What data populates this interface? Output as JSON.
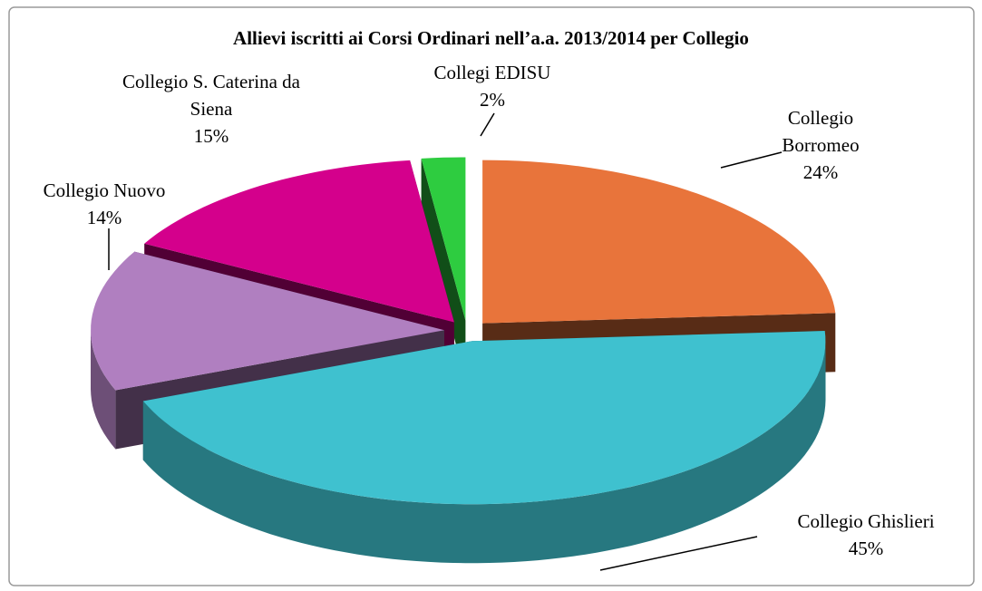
{
  "chart_data": {
    "type": "pie3d",
    "title": "Allievi iscritti ai Corsi Ordinari nell’a.a. 2013/2014 per Collegio",
    "categories": [
      "Collegio Borromeo",
      "Collegio Ghislieri",
      "Collegio Nuovo",
      "Collegio S. Caterina da Siena",
      "Collegi EDISU"
    ],
    "values": [
      24,
      45,
      14,
      15,
      2
    ],
    "value_labels": [
      "24%",
      "45%",
      "14%",
      "15%",
      "2%"
    ],
    "colors": [
      "#e8743b",
      "#3fc1cf",
      "#b07fc0",
      "#d4008c",
      "#2ecc40"
    ]
  }
}
